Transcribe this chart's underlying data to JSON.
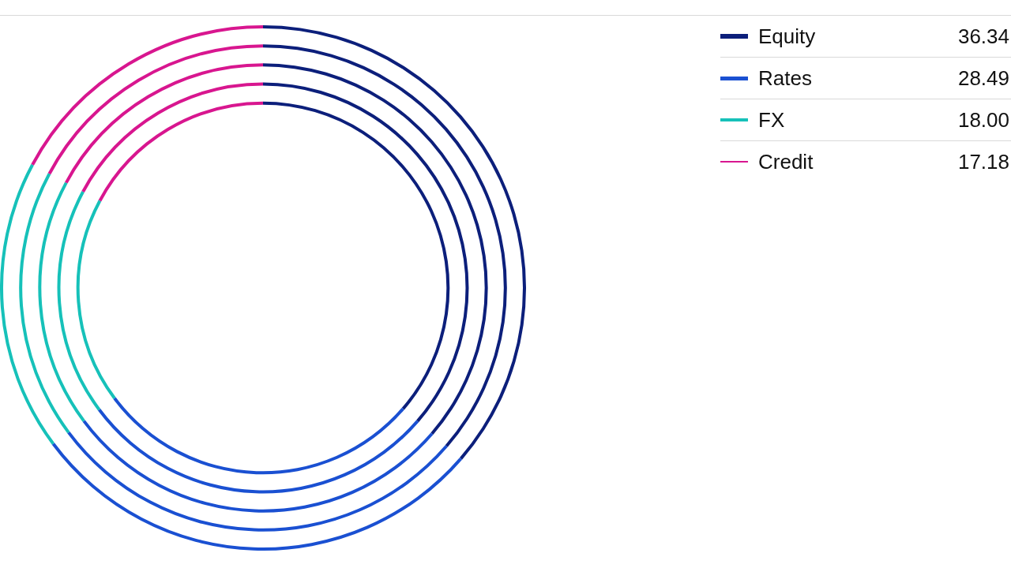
{
  "chart_data": {
    "type": "donut",
    "categories": [
      "Equity",
      "Rates",
      "FX",
      "Credit"
    ],
    "colors": [
      "#0c1f7b",
      "#1a50d2",
      "#16c1b9",
      "#d8168f"
    ],
    "legend": "top right",
    "series": [
      {
        "values": [
          36.34,
          28.49,
          18,
          17.18
        ],
        "value_labels": [
          "36.34",
          "28.49",
          "18.00",
          "17.18"
        ]
      },
      {
        "values": [
          36.34,
          28.49,
          18,
          17.18
        ]
      },
      {
        "values": [
          36.34,
          28.49,
          18,
          17.18
        ]
      },
      {
        "values": [
          36.34,
          28.49,
          18,
          17.18
        ]
      },
      {
        "values": [
          36.34,
          28.49,
          18,
          17.18
        ]
      }
    ]
  }
}
